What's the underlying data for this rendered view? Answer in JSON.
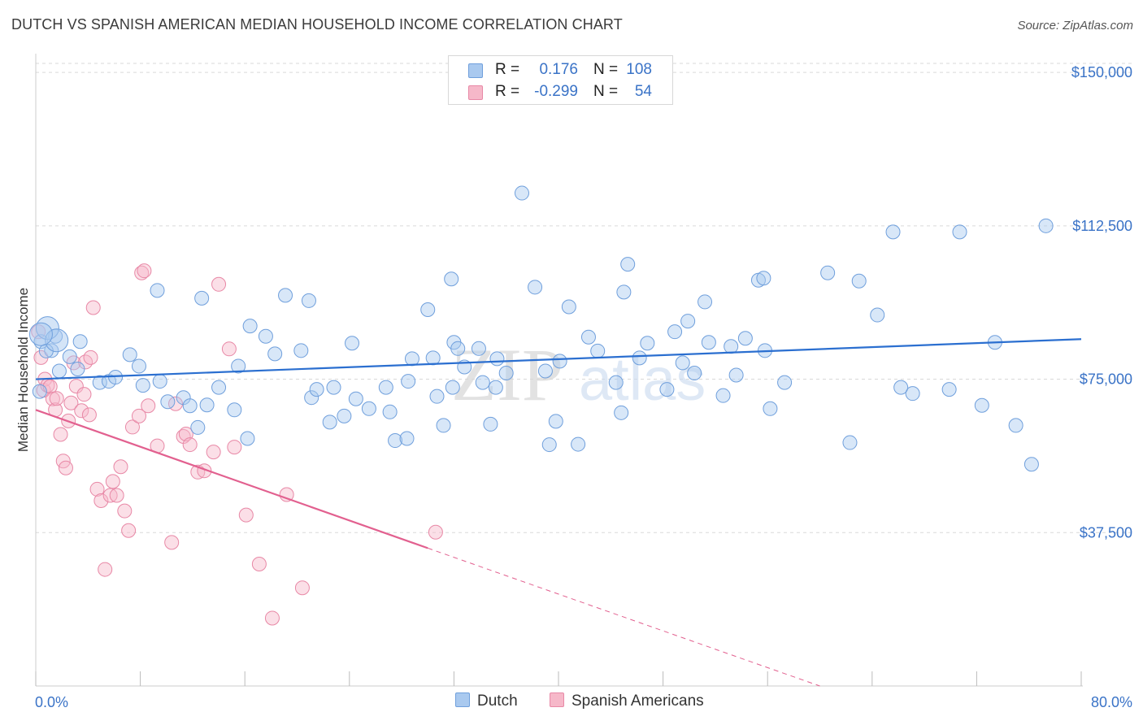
{
  "title": "DUTCH VS SPANISH AMERICAN MEDIAN HOUSEHOLD INCOME CORRELATION CHART",
  "source": "Source: ZipAtlas.com",
  "watermark": "ZIPatlas",
  "legend": {
    "dutch": {
      "r_label": "R =",
      "r_value": "0.176",
      "n_label": "N =",
      "n_value": "108"
    },
    "spanish": {
      "r_label": "R =",
      "r_value": "-0.299",
      "n_label": "N =",
      "n_value": "54"
    }
  },
  "bottom_legend": {
    "dutch": "Dutch",
    "spanish": "Spanish Americans"
  },
  "colors": {
    "dutch_fill": "#a9c9ef",
    "dutch_stroke": "#6f9fdc",
    "dutch_line": "#2b6fd0",
    "spanish_fill": "#f6b8c9",
    "spanish_stroke": "#e888a6",
    "spanish_line": "#e2608f",
    "tick_label": "#3a73c7",
    "grid": "#d9d9d9"
  },
  "chart_data": {
    "type": "scatter",
    "title": "DUTCH VS SPANISH AMERICAN MEDIAN HOUSEHOLD INCOME CORRELATION CHART",
    "xlabel": "",
    "ylabel": "Median Household Income",
    "xlim": [
      0,
      80
    ],
    "ylim": [
      0,
      153000
    ],
    "x_tick_labels": [
      "0.0%",
      "80.0%"
    ],
    "y_ticks": [
      37500,
      75000,
      112500,
      150000
    ],
    "y_tick_labels": [
      "$37,500",
      "$75,000",
      "$112,500",
      "$150,000"
    ],
    "grid": "horizontal dashed",
    "legend_position": "top-center",
    "series": [
      {
        "name": "Dutch",
        "trend": {
          "x": [
            0,
            80
          ],
          "y": [
            75000,
            84800
          ]
        },
        "points": [
          [
            0.4,
            84200
          ],
          [
            1.5,
            85500
          ],
          [
            1.2,
            82000
          ],
          [
            3.4,
            84200
          ],
          [
            2.6,
            80500
          ],
          [
            3.2,
            77500
          ],
          [
            4.9,
            74200
          ],
          [
            5.6,
            74500
          ],
          [
            6.1,
            75500
          ],
          [
            7.2,
            81000
          ],
          [
            8.2,
            73500
          ],
          [
            7.9,
            78200
          ],
          [
            9.5,
            74500
          ],
          [
            11.3,
            70500
          ],
          [
            10.1,
            69500
          ],
          [
            11.8,
            68500
          ],
          [
            12.4,
            63200
          ],
          [
            13.1,
            68700
          ],
          [
            14.0,
            73000
          ],
          [
            15.2,
            67500
          ],
          [
            15.5,
            78200
          ],
          [
            16.2,
            60500
          ],
          [
            16.4,
            88000
          ],
          [
            18.3,
            81200
          ],
          [
            17.6,
            85500
          ],
          [
            19.1,
            95500
          ],
          [
            20.3,
            82000
          ],
          [
            20.9,
            94200
          ],
          [
            21.1,
            70500
          ],
          [
            21.5,
            72500
          ],
          [
            22.5,
            64500
          ],
          [
            22.8,
            73000
          ],
          [
            23.6,
            66000
          ],
          [
            24.2,
            83800
          ],
          [
            24.5,
            70200
          ],
          [
            25.5,
            67800
          ],
          [
            26.8,
            73000
          ],
          [
            27.1,
            67000
          ],
          [
            27.5,
            60000
          ],
          [
            28.4,
            60500
          ],
          [
            28.8,
            80000
          ],
          [
            28.5,
            74500
          ],
          [
            30.0,
            92000
          ],
          [
            30.4,
            80200
          ],
          [
            30.7,
            70800
          ],
          [
            31.8,
            99500
          ],
          [
            32.0,
            84000
          ],
          [
            32.3,
            82500
          ],
          [
            32.8,
            78000
          ],
          [
            34.2,
            74200
          ],
          [
            34.8,
            64000
          ],
          [
            35.3,
            80000
          ],
          [
            36.0,
            76500
          ],
          [
            35.2,
            73000
          ],
          [
            33.9,
            82500
          ],
          [
            31.9,
            73000
          ],
          [
            31.2,
            63700
          ],
          [
            37.2,
            120500
          ],
          [
            38.2,
            97500
          ],
          [
            39.0,
            77000
          ],
          [
            39.3,
            59000
          ],
          [
            39.8,
            64700
          ],
          [
            40.1,
            79400
          ],
          [
            40.8,
            92700
          ],
          [
            41.5,
            59100
          ],
          [
            42.3,
            85300
          ],
          [
            43.0,
            81900
          ],
          [
            44.4,
            74200
          ],
          [
            44.8,
            66800
          ],
          [
            45.0,
            96300
          ],
          [
            45.3,
            103100
          ],
          [
            46.2,
            80200
          ],
          [
            46.8,
            83800
          ],
          [
            48.3,
            72500
          ],
          [
            48.9,
            86600
          ],
          [
            49.5,
            79000
          ],
          [
            49.9,
            89200
          ],
          [
            50.4,
            76500
          ],
          [
            51.2,
            93900
          ],
          [
            51.5,
            84000
          ],
          [
            52.6,
            71000
          ],
          [
            53.2,
            83000
          ],
          [
            53.6,
            76000
          ],
          [
            55.3,
            99200
          ],
          [
            55.7,
            99700
          ],
          [
            55.8,
            82000
          ],
          [
            56.2,
            67800
          ],
          [
            57.3,
            74200
          ],
          [
            60.6,
            101000
          ],
          [
            62.3,
            59500
          ],
          [
            65.6,
            111000
          ],
          [
            67.1,
            71500
          ],
          [
            69.9,
            72500
          ],
          [
            72.4,
            68600
          ],
          [
            73.4,
            84000
          ],
          [
            63.0,
            99000
          ],
          [
            66.2,
            73000
          ],
          [
            64.4,
            90700
          ],
          [
            54.3,
            85000
          ],
          [
            12.7,
            94800
          ],
          [
            9.3,
            96700
          ],
          [
            70.7,
            111000
          ],
          [
            77.3,
            112500
          ],
          [
            75.0,
            63700
          ],
          [
            76.2,
            54200
          ],
          [
            0.8,
            81900
          ],
          [
            0.3,
            72000
          ],
          [
            1.8,
            77000
          ]
        ],
        "big_points": [
          [
            0.9,
            87500
          ],
          [
            1.6,
            84500
          ],
          [
            0.4,
            86000
          ]
        ]
      },
      {
        "name": "Spanish Americans",
        "trend": {
          "x": [
            0,
            30
          ],
          "y": [
            67500,
            33700
          ]
        },
        "trend_dashed": {
          "x": [
            30,
            60
          ],
          "y": [
            33700,
            0
          ]
        },
        "points": [
          [
            0.2,
            86600
          ],
          [
            0.4,
            80300
          ],
          [
            0.6,
            72300
          ],
          [
            0.7,
            75000
          ],
          [
            0.9,
            73500
          ],
          [
            1.1,
            73200
          ],
          [
            1.3,
            70200
          ],
          [
            1.5,
            67500
          ],
          [
            1.6,
            70300
          ],
          [
            1.9,
            61500
          ],
          [
            2.1,
            55000
          ],
          [
            2.3,
            53300
          ],
          [
            2.5,
            64800
          ],
          [
            2.7,
            69200
          ],
          [
            2.9,
            79000
          ],
          [
            3.1,
            73300
          ],
          [
            3.5,
            67300
          ],
          [
            3.7,
            71300
          ],
          [
            3.8,
            79200
          ],
          [
            4.2,
            80300
          ],
          [
            4.1,
            66300
          ],
          [
            4.4,
            92500
          ],
          [
            4.7,
            48100
          ],
          [
            5.0,
            45300
          ],
          [
            5.3,
            28500
          ],
          [
            5.7,
            46600
          ],
          [
            5.9,
            50000
          ],
          [
            6.2,
            46600
          ],
          [
            6.5,
            53600
          ],
          [
            6.8,
            42800
          ],
          [
            7.1,
            38000
          ],
          [
            7.4,
            63300
          ],
          [
            8.1,
            101000
          ],
          [
            8.3,
            101500
          ],
          [
            7.9,
            66000
          ],
          [
            8.6,
            68500
          ],
          [
            9.3,
            58700
          ],
          [
            10.4,
            35100
          ],
          [
            10.7,
            69000
          ],
          [
            11.3,
            61000
          ],
          [
            11.5,
            61600
          ],
          [
            12.4,
            52300
          ],
          [
            12.9,
            52600
          ],
          [
            13.6,
            57200
          ],
          [
            14.0,
            98200
          ],
          [
            14.8,
            82400
          ],
          [
            15.2,
            58400
          ],
          [
            16.1,
            41800
          ],
          [
            17.1,
            29800
          ],
          [
            18.1,
            16600
          ],
          [
            11.8,
            59000
          ],
          [
            19.2,
            46800
          ],
          [
            30.6,
            37600
          ],
          [
            20.4,
            24000
          ]
        ]
      }
    ]
  }
}
